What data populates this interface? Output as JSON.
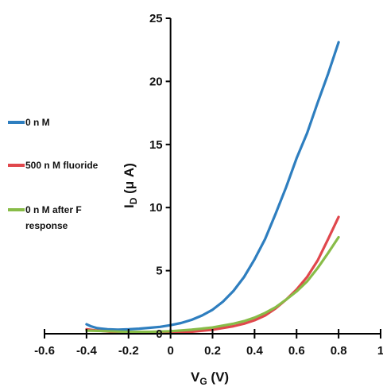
{
  "chart_data": {
    "type": "line",
    "xlabel_main": "V",
    "xlabel_sub": "G",
    "xlabel_unit": " (V)",
    "ylabel_main": "I",
    "ylabel_sub": "D",
    "ylabel_unit": " (μ A)",
    "xlim": [
      -0.6,
      1.0
    ],
    "ylim": [
      0,
      25
    ],
    "xticks": [
      -0.6,
      -0.4,
      -0.2,
      0,
      0.2,
      0.4,
      0.6,
      0.8,
      1
    ],
    "xtick_labels": [
      "-0.6",
      "-0.4",
      "-0.2",
      "0",
      "0.2",
      "0.4",
      "0.6",
      "0.8",
      "1"
    ],
    "yticks": [
      0,
      5,
      10,
      15,
      20,
      25
    ],
    "ytick_labels": [
      "0",
      "5",
      "10",
      "15",
      "20",
      "25"
    ],
    "grid": false,
    "legend_position": "left",
    "series": [
      {
        "name": "0 n M",
        "color": "#2e7ebf",
        "x": [
          -0.4,
          -0.38,
          -0.35,
          -0.3,
          -0.25,
          -0.2,
          -0.15,
          -0.1,
          -0.05,
          0,
          0.05,
          0.1,
          0.15,
          0.2,
          0.25,
          0.3,
          0.35,
          0.4,
          0.45,
          0.5,
          0.55,
          0.6,
          0.65,
          0.7,
          0.75,
          0.8
        ],
        "y": [
          0.75,
          0.6,
          0.45,
          0.35,
          0.33,
          0.35,
          0.4,
          0.47,
          0.55,
          0.68,
          0.85,
          1.1,
          1.45,
          1.9,
          2.55,
          3.4,
          4.5,
          5.9,
          7.5,
          9.5,
          11.6,
          13.9,
          15.9,
          18.3,
          20.6,
          23.1
        ]
      },
      {
        "name": "500 n M fluoride",
        "color": "#e0474c",
        "x": [
          -0.4,
          -0.35,
          -0.3,
          -0.25,
          -0.2,
          -0.1,
          0,
          0.1,
          0.2,
          0.3,
          0.35,
          0.4,
          0.45,
          0.5,
          0.55,
          0.6,
          0.65,
          0.7,
          0.75,
          0.8
        ],
        "y": [
          0.35,
          0.25,
          0.18,
          0.12,
          0.08,
          0.06,
          0.08,
          0.16,
          0.32,
          0.6,
          0.8,
          1.07,
          1.45,
          2.0,
          2.7,
          3.5,
          4.5,
          5.8,
          7.5,
          9.25
        ]
      },
      {
        "name": "0 n M after F response",
        "color": "#88bc48",
        "x": [
          -0.4,
          -0.3,
          -0.2,
          -0.1,
          0,
          0.1,
          0.2,
          0.3,
          0.35,
          0.4,
          0.45,
          0.5,
          0.55,
          0.6,
          0.65,
          0.7,
          0.75,
          0.8
        ],
        "y": [
          0.25,
          0.2,
          0.15,
          0.15,
          0.2,
          0.32,
          0.5,
          0.8,
          1.0,
          1.28,
          1.65,
          2.1,
          2.7,
          3.35,
          4.15,
          5.2,
          6.4,
          7.65
        ]
      }
    ],
    "legend": [
      {
        "label_lines": [
          "0 n M"
        ],
        "color": "#2e7ebf"
      },
      {
        "label_lines": [
          "500 n M fluoride"
        ],
        "color": "#e0474c"
      },
      {
        "label_lines": [
          "0 n M after F",
          "response"
        ],
        "color": "#88bc48"
      }
    ]
  }
}
